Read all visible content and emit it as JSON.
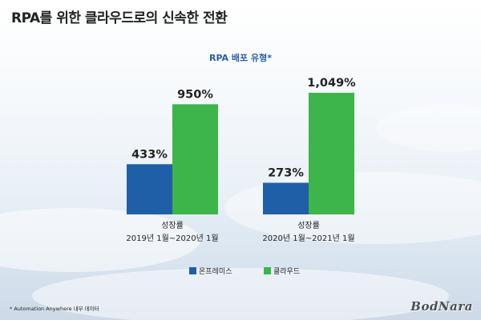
{
  "page": {
    "title": "RPA를 위한 클라우드로의 신속한 전환",
    "footnote": "* Automation Anywhere 내부 데이터",
    "logo": "BodNara"
  },
  "chart_data": {
    "type": "bar",
    "title": "RPA 배포 유형*",
    "categories": [
      {
        "line1": "성장률",
        "line2": "2019년 1월~2020년 1월"
      },
      {
        "line1": "성장률",
        "line2": "2020년 1월~2021년 1월"
      }
    ],
    "series": [
      {
        "name": "온프레미스",
        "color": "#1f5fa8",
        "values": [
          433,
          273
        ],
        "labels": [
          "433%",
          "273%"
        ]
      },
      {
        "name": "클라우드",
        "color": "#3db54a",
        "values": [
          950,
          1049
        ],
        "labels": [
          "950%",
          "1,049%"
        ]
      }
    ],
    "ylim": [
      0,
      1049
    ],
    "legend_position": "bottom",
    "grid": false
  }
}
